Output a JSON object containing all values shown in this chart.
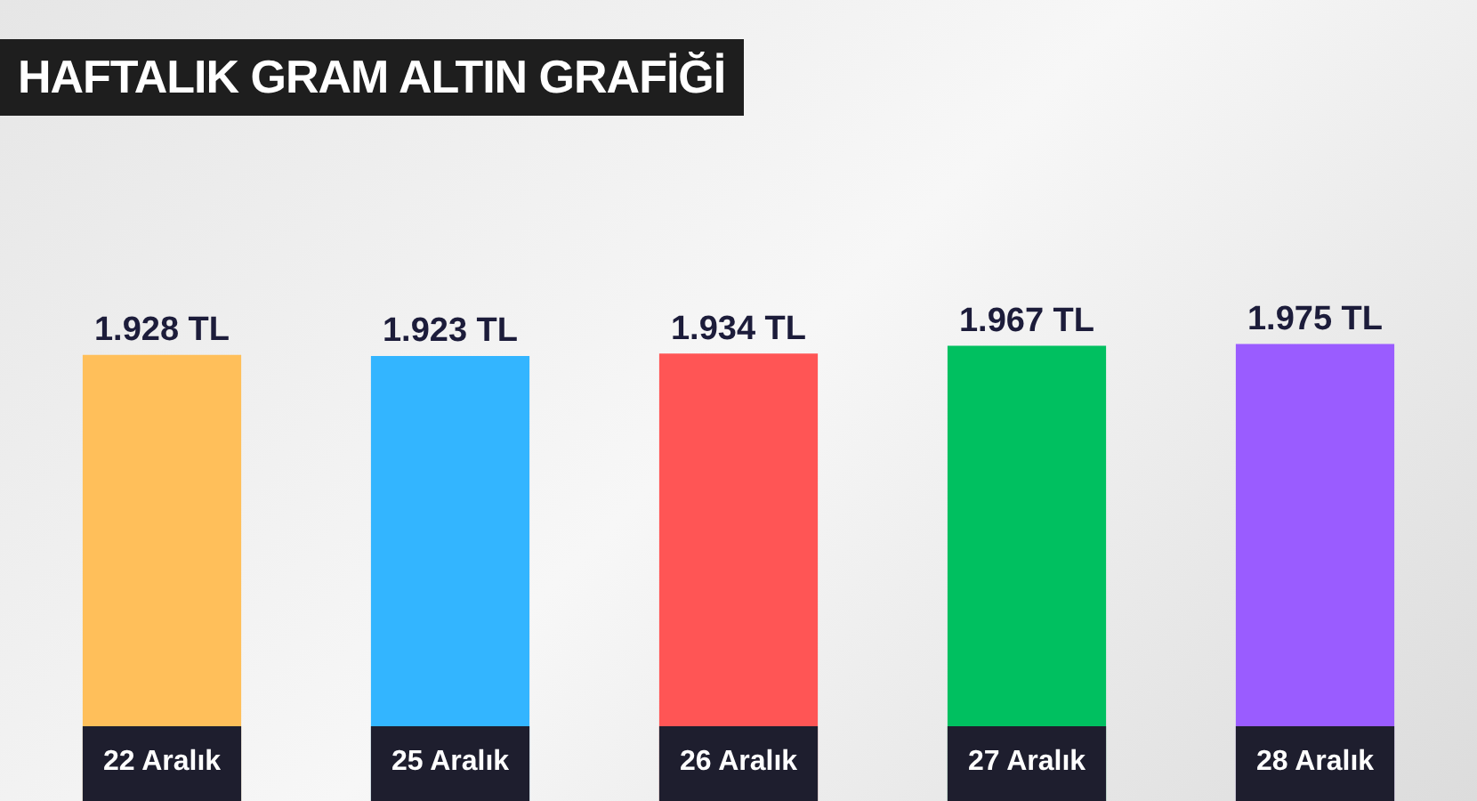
{
  "chart_data": {
    "type": "bar",
    "title": "HAFTALIK GRAM ALTIN GRAFİĞİ",
    "categories": [
      "22 Aralık",
      "25 Aralık",
      "26 Aralık",
      "27 Aralık",
      "28 Aralık"
    ],
    "values": [
      1928,
      1923,
      1934,
      1967,
      1975
    ],
    "value_labels": [
      "1.928 TL",
      "1.923 TL",
      "1.934 TL",
      "1.967 TL",
      "1.975 TL"
    ],
    "colors": [
      "#ffbf5a",
      "#33b5ff",
      "#ff5555",
      "#00c060",
      "#9a5cff"
    ],
    "tick_labels": "x"
  }
}
